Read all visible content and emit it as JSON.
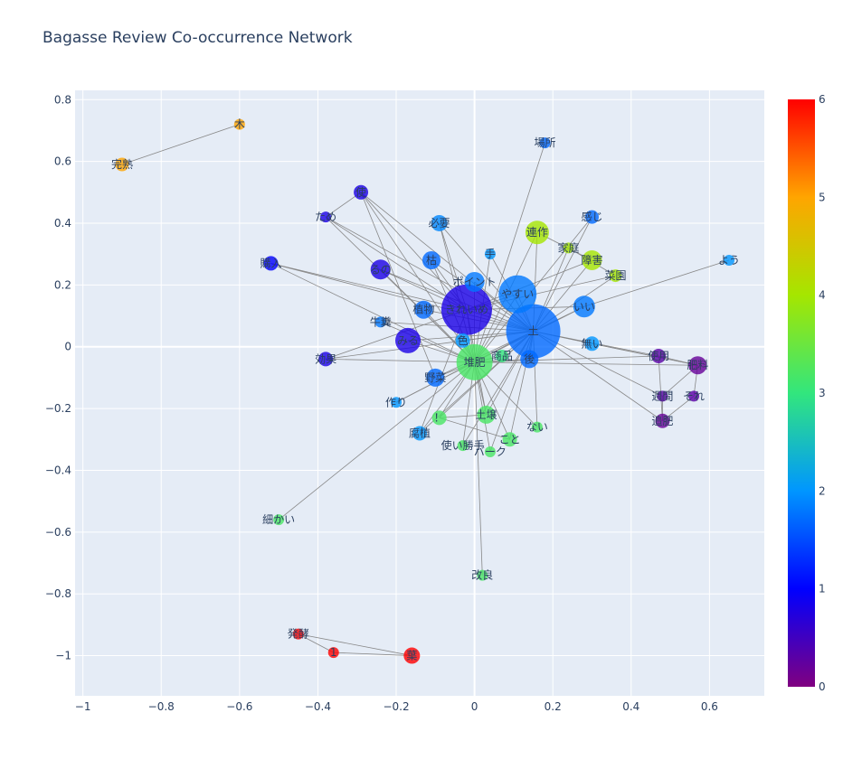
{
  "title": "Bagasse Review Co-occurrence Network",
  "chart_data": {
    "type": "scatter",
    "title": "Bagasse Review Co-occurrence Network",
    "xlabel": "",
    "ylabel": "",
    "xlim": [
      -1.02,
      0.74
    ],
    "ylim": [
      -1.13,
      0.83
    ],
    "xticks": [
      -1,
      -0.8,
      -0.6,
      -0.4,
      -0.2,
      0,
      0.2,
      0.4,
      0.6
    ],
    "yticks": [
      0.8,
      0.6,
      0.4,
      0.2,
      0,
      -0.2,
      -0.4,
      -0.6,
      -0.8,
      -1
    ],
    "grid": true,
    "plot_bg": "#e5ecf6",
    "grid_color": "#ffffff",
    "edge_color": "#888888",
    "colorbar": {
      "min": 0,
      "max": 6,
      "ticks": [
        0,
        1,
        2,
        3,
        4,
        5,
        6
      ],
      "colorscale": [
        "#800080",
        "#0000ff",
        "#0096ff",
        "#32e67d",
        "#a5e600",
        "#ffa500",
        "#ff0000"
      ]
    },
    "nodes": [
      {
        "label": "木",
        "x": -0.6,
        "y": 0.72,
        "size": 8,
        "group": 5
      },
      {
        "label": "完熟",
        "x": -0.9,
        "y": 0.59,
        "size": 11,
        "group": 5
      },
      {
        "label": "場所",
        "x": 0.18,
        "y": 0.66,
        "size": 8,
        "group": 1.7
      },
      {
        "label": "使",
        "x": -0.29,
        "y": 0.5,
        "size": 12,
        "group": 0.8
      },
      {
        "label": "ため",
        "x": -0.38,
        "y": 0.42,
        "size": 8,
        "group": 0.8
      },
      {
        "label": "感じ",
        "x": 0.3,
        "y": 0.42,
        "size": 11,
        "group": 1.7
      },
      {
        "label": "必要",
        "x": -0.09,
        "y": 0.4,
        "size": 14,
        "group": 1.9
      },
      {
        "label": "連作",
        "x": 0.16,
        "y": 0.37,
        "size": 22,
        "group": 4
      },
      {
        "label": "家庭",
        "x": 0.24,
        "y": 0.32,
        "size": 8,
        "group": 4
      },
      {
        "label": "障害",
        "x": 0.3,
        "y": 0.28,
        "size": 18,
        "group": 4
      },
      {
        "label": "よう",
        "x": 0.65,
        "y": 0.28,
        "size": 8,
        "group": 2
      },
      {
        "label": "手",
        "x": 0.04,
        "y": 0.3,
        "size": 8,
        "group": 2
      },
      {
        "label": "購入",
        "x": -0.52,
        "y": 0.27,
        "size": 12,
        "group": 1
      },
      {
        "label": "枯",
        "x": -0.11,
        "y": 0.28,
        "size": 16,
        "group": 1.7
      },
      {
        "label": "菜園",
        "x": 0.36,
        "y": 0.23,
        "size": 10,
        "group": 4
      },
      {
        "label": "るの",
        "x": -0.24,
        "y": 0.25,
        "size": 18,
        "group": 0.8
      },
      {
        "label": "ポイント",
        "x": 0.0,
        "y": 0.21,
        "size": 18,
        "group": 1.8
      },
      {
        "label": "やすい",
        "x": 0.11,
        "y": 0.17,
        "size": 38,
        "group": 1.8
      },
      {
        "label": "いい",
        "x": 0.28,
        "y": 0.13,
        "size": 20,
        "group": 1.8
      },
      {
        "label": "植物",
        "x": -0.13,
        "y": 0.12,
        "size": 16,
        "group": 1.7
      },
      {
        "label": "きれいめ",
        "x": -0.02,
        "y": 0.12,
        "size": 52,
        "group": 0.8
      },
      {
        "label": "牛糞",
        "x": -0.24,
        "y": 0.08,
        "size": 8,
        "group": 1.8
      },
      {
        "label": "土",
        "x": 0.15,
        "y": 0.05,
        "size": 56,
        "group": 1.7
      },
      {
        "label": "みる",
        "x": -0.17,
        "y": 0.02,
        "size": 24,
        "group": 0.8
      },
      {
        "label": "色",
        "x": -0.03,
        "y": 0.02,
        "size": 12,
        "group": 2
      },
      {
        "label": "無い",
        "x": 0.3,
        "y": 0.01,
        "size": 12,
        "group": 2
      },
      {
        "label": "商品",
        "x": 0.07,
        "y": -0.03,
        "size": 10,
        "group": 3
      },
      {
        "label": "後",
        "x": 0.14,
        "y": -0.04,
        "size": 16,
        "group": 1.7
      },
      {
        "label": "使用",
        "x": 0.47,
        "y": -0.03,
        "size": 12,
        "group": 0.3
      },
      {
        "label": "効果",
        "x": -0.38,
        "y": -0.04,
        "size": 12,
        "group": 0.8
      },
      {
        "label": "堆肥",
        "x": 0.0,
        "y": -0.05,
        "size": 36,
        "group": 3.2
      },
      {
        "label": "肥料",
        "x": 0.57,
        "y": -0.06,
        "size": 16,
        "group": 0.2
      },
      {
        "label": "野菜",
        "x": -0.1,
        "y": -0.1,
        "size": 16,
        "group": 1.7
      },
      {
        "label": "週間",
        "x": 0.48,
        "y": -0.16,
        "size": 8,
        "group": 0.3
      },
      {
        "label": "それ",
        "x": 0.56,
        "y": -0.16,
        "size": 8,
        "group": 0.3
      },
      {
        "label": "作り",
        "x": -0.2,
        "y": -0.18,
        "size": 8,
        "group": 2
      },
      {
        "label": "土壌",
        "x": 0.03,
        "y": -0.22,
        "size": 16,
        "group": 3.2
      },
      {
        "label": "！",
        "x": -0.09,
        "y": -0.23,
        "size": 12,
        "group": 3.2
      },
      {
        "label": "追肥",
        "x": 0.48,
        "y": -0.24,
        "size": 12,
        "group": 0.2
      },
      {
        "label": "ない",
        "x": 0.16,
        "y": -0.26,
        "size": 8,
        "group": 3.2
      },
      {
        "label": "腐植",
        "x": -0.14,
        "y": -0.28,
        "size": 12,
        "group": 2
      },
      {
        "label": "こと",
        "x": 0.09,
        "y": -0.3,
        "size": 12,
        "group": 3.2
      },
      {
        "label": "使い勝手",
        "x": -0.03,
        "y": -0.32,
        "size": 8,
        "group": 3.2
      },
      {
        "label": "バーク",
        "x": 0.04,
        "y": -0.34,
        "size": 8,
        "group": 3.2
      },
      {
        "label": "細かい",
        "x": -0.5,
        "y": -0.56,
        "size": 8,
        "group": 3.2
      },
      {
        "label": "改良",
        "x": 0.02,
        "y": -0.74,
        "size": 8,
        "group": 3.2
      },
      {
        "label": "発酵",
        "x": -0.45,
        "y": -0.93,
        "size": 8,
        "group": 6
      },
      {
        "label": "1",
        "x": -0.36,
        "y": -0.99,
        "size": 8,
        "group": 6
      },
      {
        "label": "葉",
        "x": -0.16,
        "y": -1.0,
        "size": 14,
        "group": 6
      }
    ],
    "edges": [
      [
        "木",
        "完熟"
      ],
      [
        "発酵",
        "葉"
      ],
      [
        "1",
        "葉"
      ],
      [
        "発酵",
        "1"
      ],
      [
        "細かい",
        "堆肥"
      ],
      [
        "改良",
        "堆肥"
      ],
      [
        "場所",
        "堆肥"
      ],
      [
        "よう",
        "いい"
      ],
      [
        "使",
        "ため"
      ],
      [
        "使",
        "きれいめ"
      ],
      [
        "使",
        "堆肥"
      ],
      [
        "使",
        "土"
      ],
      [
        "使",
        "野菜"
      ],
      [
        "ため",
        "きれいめ"
      ],
      [
        "ため",
        "土"
      ],
      [
        "ため",
        "堆肥"
      ],
      [
        "購入",
        "きれいめ"
      ],
      [
        "購入",
        "土"
      ],
      [
        "購入",
        "堆肥"
      ],
      [
        "効果",
        "土"
      ],
      [
        "効果",
        "堆肥"
      ],
      [
        "効果",
        "きれいめ"
      ],
      [
        "作り",
        "堆肥"
      ],
      [
        "作り",
        "土"
      ],
      [
        "必要",
        "土"
      ],
      [
        "必要",
        "きれいめ"
      ],
      [
        "必要",
        "堆肥"
      ],
      [
        "連作",
        "障害"
      ],
      [
        "連作",
        "土"
      ],
      [
        "連作",
        "堆肥"
      ],
      [
        "家庭",
        "菜園"
      ],
      [
        "家庭",
        "土"
      ],
      [
        "障害",
        "土"
      ],
      [
        "障害",
        "きれいめ"
      ],
      [
        "感じ",
        "土"
      ],
      [
        "感じ",
        "堆肥"
      ],
      [
        "菜園",
        "土"
      ],
      [
        "菜園",
        "きれいめ"
      ],
      [
        "手",
        "土"
      ],
      [
        "手",
        "堆肥"
      ],
      [
        "枯",
        "土"
      ],
      [
        "枯",
        "きれいめ"
      ],
      [
        "枯",
        "堆肥"
      ],
      [
        "るの",
        "土"
      ],
      [
        "るの",
        "きれいめ"
      ],
      [
        "るの",
        "堆肥"
      ],
      [
        "ポイント",
        "土"
      ],
      [
        "ポイント",
        "堆肥"
      ],
      [
        "やすい",
        "土"
      ],
      [
        "やすい",
        "堆肥"
      ],
      [
        "いい",
        "土"
      ],
      [
        "いい",
        "堆肥"
      ],
      [
        "いい",
        "きれいめ"
      ],
      [
        "植物",
        "土"
      ],
      [
        "植物",
        "堆肥"
      ],
      [
        "牛糞",
        "堆肥"
      ],
      [
        "牛糞",
        "土"
      ],
      [
        "みる",
        "土"
      ],
      [
        "みる",
        "堆肥"
      ],
      [
        "色",
        "堆肥"
      ],
      [
        "色",
        "土"
      ],
      [
        "無い",
        "土"
      ],
      [
        "無い",
        "肥料"
      ],
      [
        "商品",
        "堆肥"
      ],
      [
        "商品",
        "土"
      ],
      [
        "後",
        "土"
      ],
      [
        "後",
        "堆肥"
      ],
      [
        "使用",
        "肥料"
      ],
      [
        "使用",
        "土"
      ],
      [
        "使用",
        "堆肥"
      ],
      [
        "使用",
        "追肥"
      ],
      [
        "肥料",
        "土"
      ],
      [
        "肥料",
        "堆肥"
      ],
      [
        "肥料",
        "週間"
      ],
      [
        "肥料",
        "それ"
      ],
      [
        "週間",
        "追肥"
      ],
      [
        "それ",
        "追肥"
      ],
      [
        "週間",
        "土"
      ],
      [
        "野菜",
        "土"
      ],
      [
        "野菜",
        "堆肥"
      ],
      [
        "土壌",
        "堆肥"
      ],
      [
        "土壌",
        "土"
      ],
      [
        "土壌",
        "きれいめ"
      ],
      [
        "！",
        "土"
      ],
      [
        "！",
        "堆肥"
      ],
      [
        "！",
        "土壌"
      ],
      [
        "！",
        "こと"
      ],
      [
        "追肥",
        "土"
      ],
      [
        "ない",
        "土"
      ],
      [
        "ない",
        "堆肥"
      ],
      [
        "腐植",
        "土"
      ],
      [
        "腐植",
        "堆肥"
      ],
      [
        "腐植",
        "きれいめ"
      ],
      [
        "こと",
        "土"
      ],
      [
        "こと",
        "堆肥"
      ],
      [
        "使い勝手",
        "堆肥"
      ],
      [
        "使い勝手",
        "土"
      ],
      [
        "バーク",
        "堆肥"
      ],
      [
        "バーク",
        "土"
      ],
      [
        "きれいめ",
        "土"
      ],
      [
        "きれいめ",
        "堆肥"
      ],
      [
        "やすい",
        "きれいめ"
      ]
    ]
  }
}
